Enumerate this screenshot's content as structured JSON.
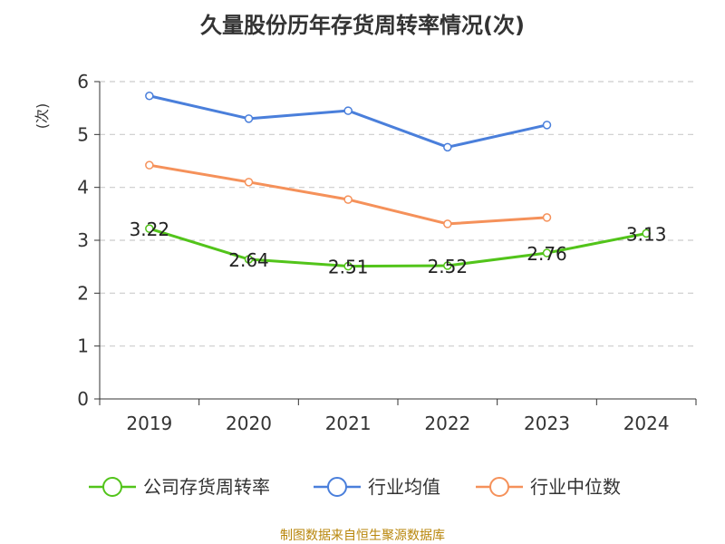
{
  "title": "久量股份历年存货周转率情况(次)",
  "source_note": "制图数据来自恒生聚源数据库",
  "colors": {
    "company": "#52c41a",
    "industry_avg": "#4a7fdb",
    "industry_median": "#f5915a",
    "ylabel": "#cc0000",
    "grid": "#cccccc",
    "axis": "#333333"
  },
  "chart_data": {
    "type": "line",
    "title": "久量股份历年存货周转率情况(次)",
    "ylabel": "(次)",
    "xlabel": "",
    "categories": [
      "2019",
      "2020",
      "2021",
      "2022",
      "2023",
      "2024"
    ],
    "ylim": [
      0,
      6
    ],
    "yticks": [
      0,
      1,
      2,
      3,
      4,
      5,
      6
    ],
    "grid": true,
    "legend_position": "bottom",
    "series": [
      {
        "name": "公司存货周转率",
        "values": [
          3.22,
          2.64,
          2.51,
          2.52,
          2.76,
          3.13
        ],
        "data_labels": [
          "3.22",
          "2.64",
          "2.51",
          "2.52",
          "2.76",
          "3.13"
        ],
        "color": "#52c41a"
      },
      {
        "name": "行业均值",
        "values": [
          5.73,
          5.3,
          5.45,
          4.76,
          5.18,
          null
        ],
        "color": "#4a7fdb"
      },
      {
        "name": "行业中位数",
        "values": [
          4.42,
          4.1,
          3.77,
          3.31,
          3.43,
          null
        ],
        "color": "#f5915a"
      }
    ]
  }
}
